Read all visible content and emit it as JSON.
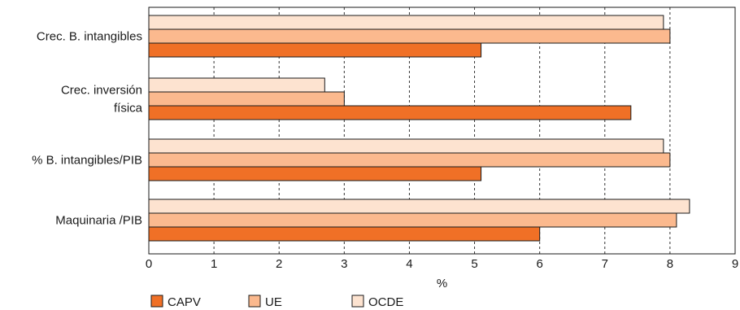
{
  "chart_data": {
    "type": "bar",
    "orientation": "horizontal",
    "categories": [
      "Crec. B. intangibles",
      "Crec. inversión física",
      "% B. intangibles/PIB",
      "Maquinaria /PIB"
    ],
    "category_lines": [
      [
        "Crec. B. intangibles"
      ],
      [
        "Crec. inversión",
        "física"
      ],
      [
        "% B. intangibles/PIB"
      ],
      [
        "Maquinaria /PIB"
      ]
    ],
    "series": [
      {
        "name": "OCDE",
        "color": "#fde3d0",
        "values": [
          7.9,
          2.7,
          7.9,
          8.3
        ]
      },
      {
        "name": "UE",
        "color": "#fbb98e",
        "values": [
          8.0,
          3.0,
          8.0,
          8.1
        ]
      },
      {
        "name": "CAPV",
        "color": "#f07026",
        "values": [
          5.1,
          7.4,
          5.1,
          6.0
        ]
      }
    ],
    "legend_order": [
      "CAPV",
      "UE",
      "OCDE"
    ],
    "xlim": [
      0,
      9
    ],
    "xticks": [
      "0",
      "1",
      "2",
      "3",
      "4",
      "5",
      "6",
      "7",
      "8",
      "9"
    ],
    "xlabel": "%",
    "grid": "vertical dashed",
    "legend_position": "bottom-left"
  }
}
